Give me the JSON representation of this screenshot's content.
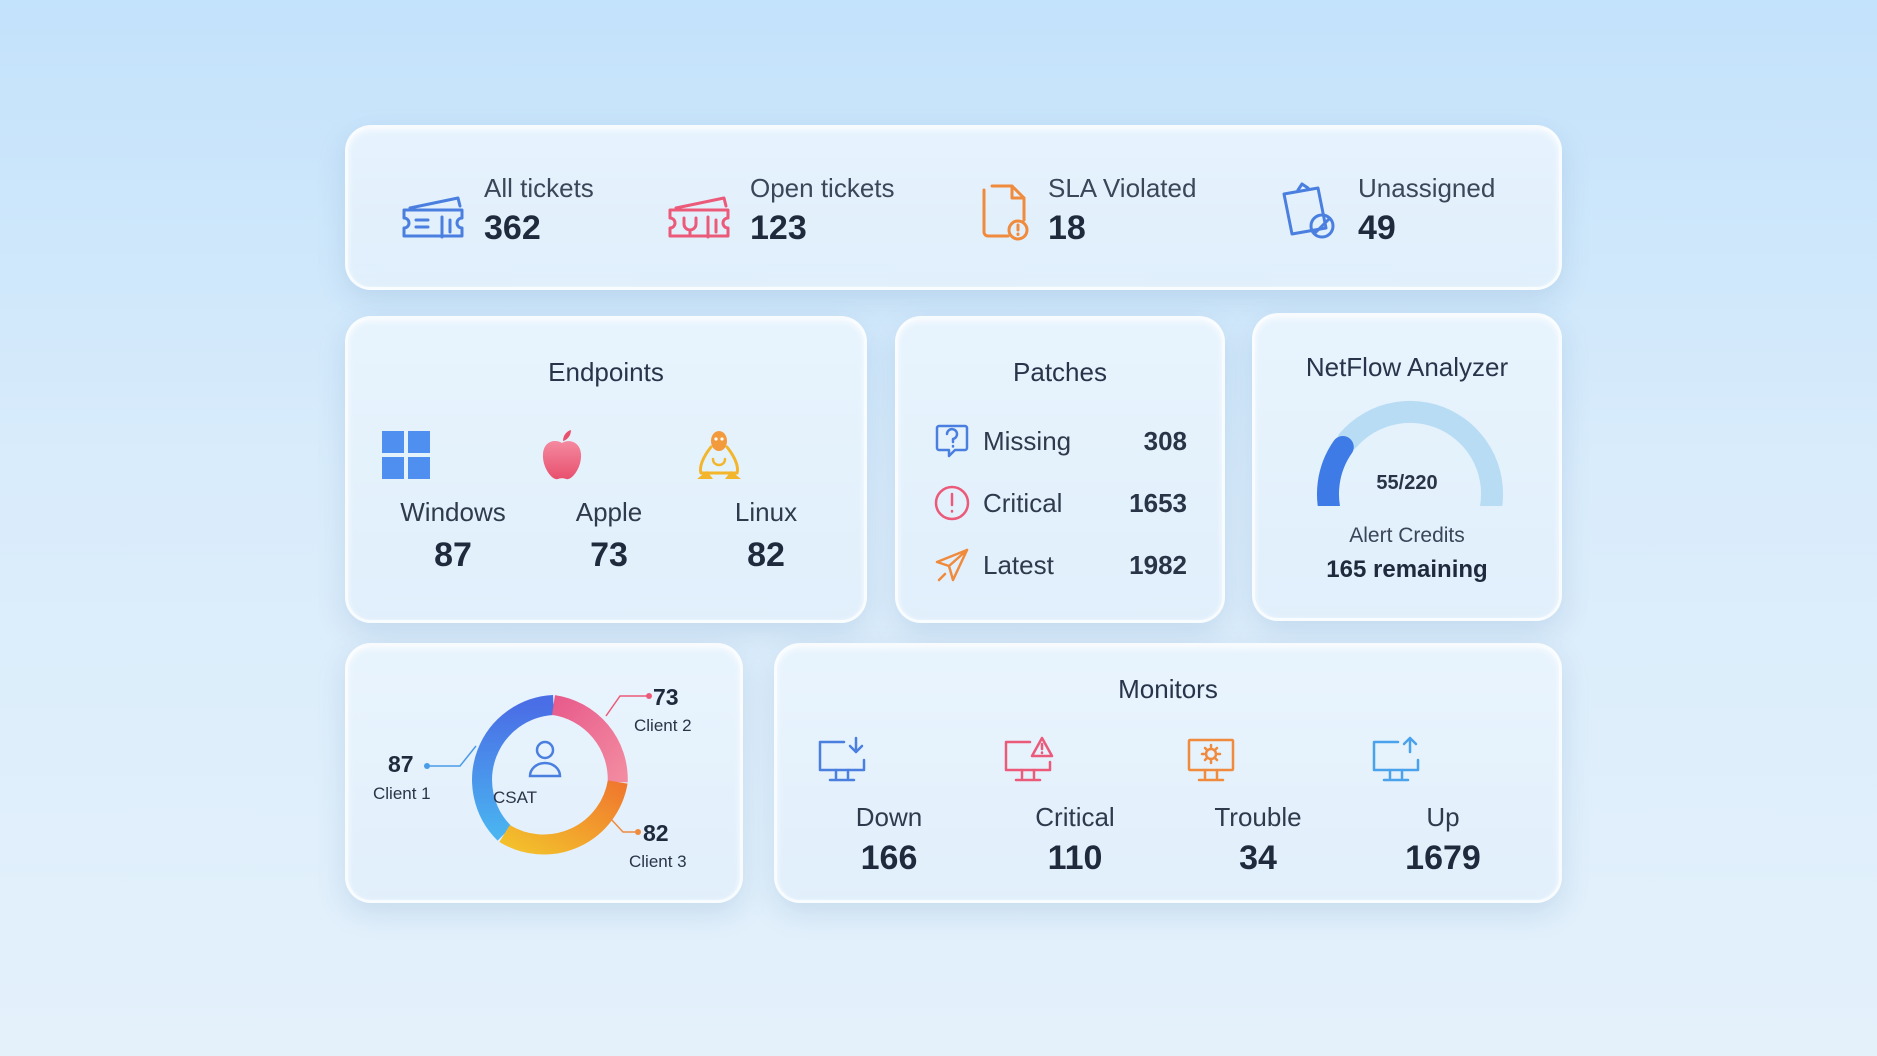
{
  "tickets": [
    {
      "label": "All tickets",
      "value": "362",
      "icon": "ticket-icon"
    },
    {
      "label": "Open tickets",
      "value": "123",
      "icon": "open-ticket-icon"
    },
    {
      "label": "SLA Violated",
      "value": "18",
      "icon": "sla-violated-icon"
    },
    {
      "label": "Unassigned",
      "value": "49",
      "icon": "unassigned-icon"
    }
  ],
  "endpoints": {
    "title": "Endpoints",
    "items": [
      {
        "label": "Windows",
        "value": "87",
        "icon": "windows-icon"
      },
      {
        "label": "Apple",
        "value": "73",
        "icon": "apple-icon"
      },
      {
        "label": "Linux",
        "value": "82",
        "icon": "linux-icon"
      }
    ]
  },
  "patches": {
    "title": "Patches",
    "items": [
      {
        "label": "Missing",
        "value": "308",
        "icon": "question-icon"
      },
      {
        "label": "Critical",
        "value": "1653",
        "icon": "alert-icon"
      },
      {
        "label": "Latest",
        "value": "1982",
        "icon": "paper-plane-icon"
      }
    ]
  },
  "netflow": {
    "title": "NetFlow Analyzer",
    "gauge_label": "55/220",
    "used": 55,
    "total": 220,
    "subtitle": "Alert Credits",
    "remaining": "165 remaining"
  },
  "csat": {
    "center_label": "CSAT",
    "icon": "user-icon",
    "clients": [
      {
        "name": "Client 1",
        "value": "87"
      },
      {
        "name": "Client 2",
        "value": "73"
      },
      {
        "name": "Client 3",
        "value": "82"
      }
    ]
  },
  "monitors": {
    "title": "Monitors",
    "items": [
      {
        "label": "Down",
        "value": "166",
        "icon": "monitor-down-icon"
      },
      {
        "label": "Critical",
        "value": "110",
        "icon": "monitor-critical-icon"
      },
      {
        "label": "Trouble",
        "value": "34",
        "icon": "monitor-trouble-icon"
      },
      {
        "label": "Up",
        "value": "1679",
        "icon": "monitor-up-icon"
      }
    ]
  },
  "colors": {
    "blue": "#4a7fe0",
    "pink": "#ec5a7a",
    "orange": "#f08a3c",
    "yellow": "#f3b52c",
    "light_blue": "#7cc0ef"
  }
}
